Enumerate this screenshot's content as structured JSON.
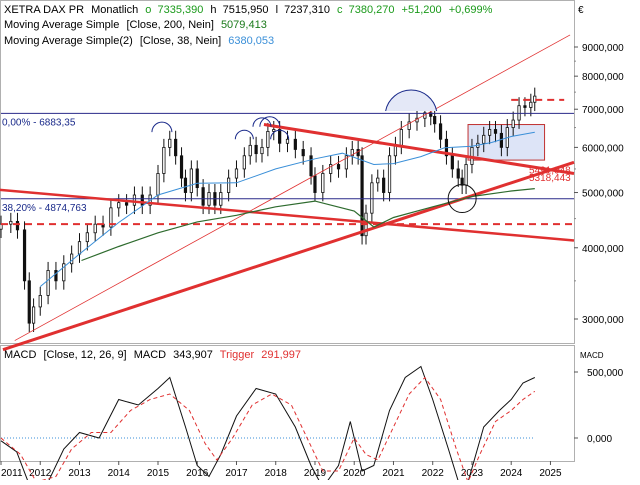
{
  "header": {
    "symbol": "XETRA DAX PR",
    "period": "Monatlich",
    "ohlc": [
      {
        "key": "o",
        "value": "7335,390",
        "color": "#1a9a1a"
      },
      {
        "key": "h",
        "value": "7515,950",
        "color": "#000000"
      },
      {
        "key": "l",
        "value": "7237,310",
        "color": "#000000"
      },
      {
        "key": "c",
        "value": "7380,270",
        "color": "#1a9a1a"
      }
    ],
    "change_abs": "+51,200",
    "change_pct": "+0,699%",
    "change_color": "#1a9a1a",
    "currency": "€"
  },
  "indicators": [
    {
      "name": "Moving Average Simple",
      "params": "[Close, 200, Nein]",
      "value": "5079,413",
      "value_color": "#1a7a1a",
      "line_color": "#2e6b2e"
    },
    {
      "name": "Moving Average Simple(2)",
      "params": "[Close, 38, Nein]",
      "value": "6380,053",
      "value_color": "#3a8fd8",
      "line_color": "#3a8fd8"
    }
  ],
  "macd_header": {
    "name": "MACD",
    "params": "[Close, 12, 26, 9]",
    "macd_label": "MACD",
    "macd_value": "343,907",
    "trigger_label": "Trigger",
    "trigger_value": "291,997",
    "trigger_color": "#e03030",
    "side_label": "MACD"
  },
  "chart_data": {
    "type": "candlestick",
    "scale": "log",
    "price_axis": {
      "ticks": [
        3000,
        4000,
        5000,
        6000,
        7000,
        8000,
        9000
      ],
      "labels": [
        "3000,000",
        "4000,000",
        "5000,000",
        "6000,000",
        "7000,000",
        "8000,000",
        "9000,000"
      ]
    },
    "x_axis": {
      "range": [
        2011.0,
        2025.6
      ],
      "ticks": [
        "2011",
        "2012",
        "2013",
        "2014",
        "2015",
        "2016",
        "2017",
        "2018",
        "2019",
        "2020",
        "2021",
        "2022",
        "2023",
        "2024",
        "2025"
      ]
    },
    "price_series": [
      [
        2011.0,
        4400
      ],
      [
        2011.25,
        4450
      ],
      [
        2011.42,
        4300
      ],
      [
        2011.6,
        3500
      ],
      [
        2011.72,
        2950
      ],
      [
        2011.83,
        3150
      ],
      [
        2012.0,
        3300
      ],
      [
        2012.2,
        3650
      ],
      [
        2012.4,
        3500
      ],
      [
        2012.6,
        3750
      ],
      [
        2012.8,
        3900
      ],
      [
        2013.0,
        4100
      ],
      [
        2013.2,
        4250
      ],
      [
        2013.4,
        4400
      ],
      [
        2013.6,
        4350
      ],
      [
        2013.8,
        4700
      ],
      [
        2014.0,
        4800
      ],
      [
        2014.2,
        4750
      ],
      [
        2014.4,
        4950
      ],
      [
        2014.6,
        4750
      ],
      [
        2014.8,
        4950
      ],
      [
        2015.0,
        5400
      ],
      [
        2015.15,
        6000
      ],
      [
        2015.3,
        6200
      ],
      [
        2015.45,
        5800
      ],
      [
        2015.6,
        5300
      ],
      [
        2015.7,
        5000
      ],
      [
        2015.85,
        5500
      ],
      [
        2016.0,
        5100
      ],
      [
        2016.15,
        4750
      ],
      [
        2016.3,
        5000
      ],
      [
        2016.45,
        4750
      ],
      [
        2016.6,
        5000
      ],
      [
        2016.8,
        5300
      ],
      [
        2017.0,
        5500
      ],
      [
        2017.2,
        5800
      ],
      [
        2017.35,
        6050
      ],
      [
        2017.5,
        5850
      ],
      [
        2017.65,
        6000
      ],
      [
        2017.8,
        6400
      ],
      [
        2017.95,
        6450
      ],
      [
        2018.1,
        6100
      ],
      [
        2018.3,
        6200
      ],
      [
        2018.5,
        5950
      ],
      [
        2018.7,
        5800
      ],
      [
        2018.9,
        5350
      ],
      [
        2019.0,
        5000
      ],
      [
        2019.2,
        5400
      ],
      [
        2019.4,
        5600
      ],
      [
        2019.6,
        5500
      ],
      [
        2019.8,
        5800
      ],
      [
        2019.95,
        5950
      ],
      [
        2020.1,
        5800
      ],
      [
        2020.2,
        4200
      ],
      [
        2020.3,
        4600
      ],
      [
        2020.45,
        5200
      ],
      [
        2020.6,
        5300
      ],
      [
        2020.75,
        5000
      ],
      [
        2020.9,
        5800
      ],
      [
        2021.05,
        6050
      ],
      [
        2021.2,
        6450
      ],
      [
        2021.4,
        6650
      ],
      [
        2021.6,
        6750
      ],
      [
        2021.8,
        6900
      ],
      [
        2021.95,
        6800
      ],
      [
        2022.05,
        6600
      ],
      [
        2022.2,
        6200
      ],
      [
        2022.35,
        5800
      ],
      [
        2022.5,
        5500
      ],
      [
        2022.65,
        5300
      ],
      [
        2022.75,
        5150
      ],
      [
        2022.85,
        5600
      ],
      [
        2023.0,
        6000
      ],
      [
        2023.15,
        6100
      ],
      [
        2023.3,
        6300
      ],
      [
        2023.45,
        6450
      ],
      [
        2023.6,
        6350
      ],
      [
        2023.75,
        6000
      ],
      [
        2023.9,
        6500
      ],
      [
        2024.05,
        6700
      ],
      [
        2024.2,
        7100
      ],
      [
        2024.35,
        7050
      ],
      [
        2024.5,
        7200
      ],
      [
        2024.6,
        7380
      ]
    ],
    "ma200": [
      [
        2013.05,
        3800
      ],
      [
        2014,
        4020
      ],
      [
        2015,
        4250
      ],
      [
        2016,
        4440
      ],
      [
        2017,
        4560
      ],
      [
        2018,
        4720
      ],
      [
        2019,
        4830
      ],
      [
        2020,
        4640
      ],
      [
        2020.5,
        4350
      ],
      [
        2021,
        4520
      ],
      [
        2022,
        4720
      ],
      [
        2023,
        4920
      ],
      [
        2024,
        5030
      ],
      [
        2024.6,
        5079
      ]
    ],
    "ma38": [
      [
        2012.0,
        3420
      ],
      [
        2013,
        3900
      ],
      [
        2014,
        4430
      ],
      [
        2015,
        4950
      ],
      [
        2016,
        5190
      ],
      [
        2017,
        5200
      ],
      [
        2018,
        5500
      ],
      [
        2019,
        5730
      ],
      [
        2019.7,
        5860
      ],
      [
        2020.5,
        5600
      ],
      [
        2021,
        5620
      ],
      [
        2021.7,
        5780
      ],
      [
        2022.3,
        5990
      ],
      [
        2023,
        6030
      ],
      [
        2023.5,
        6120
      ],
      [
        2024,
        6270
      ],
      [
        2024.6,
        6380
      ]
    ],
    "macd": [
      [
        2011.0,
        -0.05
      ],
      [
        2011.4,
        -0.25
      ],
      [
        2011.8,
        -1.0
      ],
      [
        2012.2,
        -0.8
      ],
      [
        2012.6,
        -0.2
      ],
      [
        2013.0,
        0.1
      ],
      [
        2013.5,
        0.0
      ],
      [
        2014.0,
        0.7
      ],
      [
        2014.5,
        0.6
      ],
      [
        2015.0,
        0.9
      ],
      [
        2015.3,
        1.1
      ],
      [
        2015.7,
        0.2
      ],
      [
        2016.0,
        -0.5
      ],
      [
        2016.3,
        -0.7
      ],
      [
        2016.6,
        -0.3
      ],
      [
        2017.0,
        0.4
      ],
      [
        2017.5,
        0.9
      ],
      [
        2018.0,
        0.8
      ],
      [
        2018.5,
        0.2
      ],
      [
        2018.9,
        -0.5
      ],
      [
        2019.2,
        -0.9
      ],
      [
        2019.6,
        -0.5
      ],
      [
        2019.9,
        0.3
      ],
      [
        2020.2,
        -0.6
      ],
      [
        2020.5,
        -0.5
      ],
      [
        2020.9,
        0.5
      ],
      [
        2021.3,
        1.1
      ],
      [
        2021.7,
        1.3
      ],
      [
        2022.0,
        0.7
      ],
      [
        2022.4,
        -0.2
      ],
      [
        2022.7,
        -0.9
      ],
      [
        2022.9,
        -0.8
      ],
      [
        2023.3,
        0.2
      ],
      [
        2023.7,
        0.5
      ],
      [
        2024.0,
        0.7
      ],
      [
        2024.3,
        1.0
      ],
      [
        2024.6,
        1.1
      ]
    ],
    "trigger": [
      [
        2011.0,
        0.0
      ],
      [
        2011.5,
        -0.3
      ],
      [
        2011.9,
        -0.8
      ],
      [
        2012.4,
        -0.7
      ],
      [
        2012.8,
        -0.2
      ],
      [
        2013.3,
        0.1
      ],
      [
        2013.8,
        0.1
      ],
      [
        2014.3,
        0.5
      ],
      [
        2014.8,
        0.7
      ],
      [
        2015.3,
        0.8
      ],
      [
        2015.8,
        0.5
      ],
      [
        2016.2,
        -0.1
      ],
      [
        2016.5,
        -0.4
      ],
      [
        2016.9,
        0.0
      ],
      [
        2017.4,
        0.6
      ],
      [
        2017.9,
        0.8
      ],
      [
        2018.4,
        0.6
      ],
      [
        2018.8,
        0.0
      ],
      [
        2019.2,
        -0.6
      ],
      [
        2019.6,
        -0.6
      ],
      [
        2020.0,
        0.0
      ],
      [
        2020.3,
        -0.3
      ],
      [
        2020.6,
        -0.4
      ],
      [
        2021.0,
        0.2
      ],
      [
        2021.4,
        0.8
      ],
      [
        2021.8,
        1.1
      ],
      [
        2022.2,
        0.7
      ],
      [
        2022.6,
        -0.2
      ],
      [
        2022.9,
        -0.8
      ],
      [
        2023.2,
        -0.3
      ],
      [
        2023.6,
        0.3
      ],
      [
        2024.0,
        0.5
      ],
      [
        2024.3,
        0.7
      ],
      [
        2024.6,
        0.85
      ]
    ],
    "macd_axis": {
      "ticks": [
        500000,
        0
      ],
      "labels": [
        "500,000",
        "0,000"
      ]
    },
    "annotations": {
      "fib_levels": [
        {
          "label": "0,00% - 6883,35",
          "value": 6883.35
        },
        {
          "label": "38,20% - 4874,763",
          "value": 4874.763
        }
      ],
      "trend_labels": [
        {
          "label": "5491,048",
          "value": 5491.048
        },
        {
          "label": "5318,443",
          "value": 5318.443
        }
      ],
      "dashed_levels": [
        4400,
        7270
      ]
    }
  }
}
